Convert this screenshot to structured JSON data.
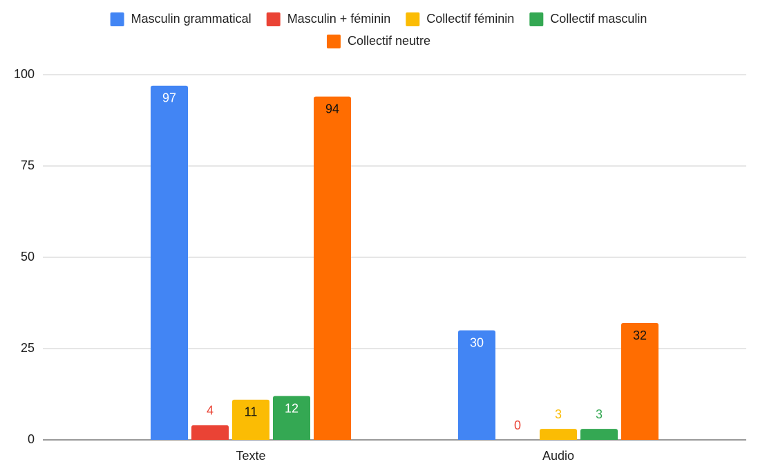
{
  "chart_data": {
    "type": "bar",
    "categories": [
      "Texte",
      "Audio"
    ],
    "series": [
      {
        "name": "Masculin grammatical",
        "color": "#4285f4",
        "values": [
          97,
          30
        ]
      },
      {
        "name": "Masculin + féminin",
        "color": "#ea4335",
        "values": [
          4,
          0
        ]
      },
      {
        "name": "Collectif féminin",
        "color": "#fbbc04",
        "values": [
          11,
          3
        ]
      },
      {
        "name": "Collectif masculin",
        "color": "#34a853",
        "values": [
          12,
          3
        ]
      },
      {
        "name": "Collectif neutre",
        "color": "#ff6d01",
        "values": [
          94,
          32
        ]
      }
    ],
    "ylim": [
      0,
      100
    ],
    "yticks": [
      0,
      25,
      50,
      75,
      100
    ],
    "grid": true,
    "legend": "top"
  }
}
